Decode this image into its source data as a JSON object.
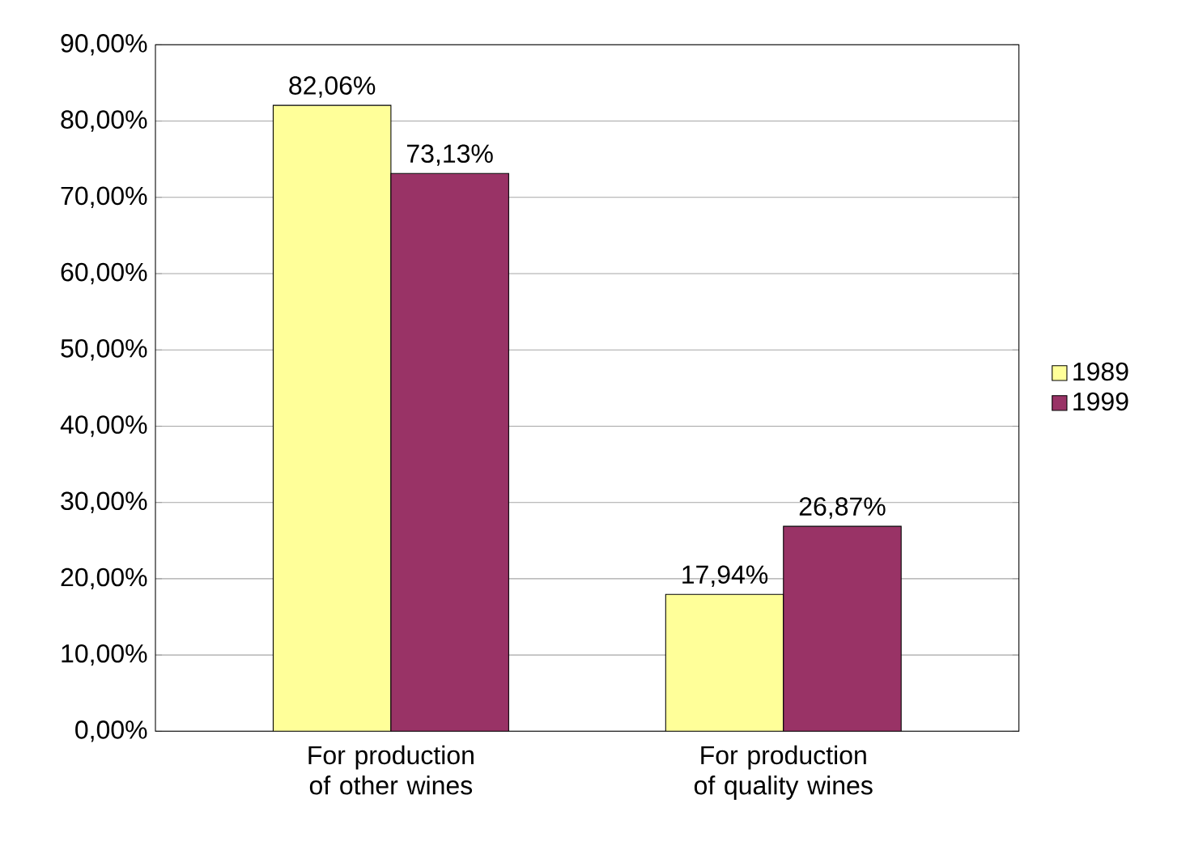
{
  "chart_data": {
    "type": "bar",
    "categories": [
      "For production of other wines",
      "For production of quality wines"
    ],
    "series": [
      {
        "name": "1989",
        "color": "#ffff99",
        "values": [
          82.06,
          17.94
        ],
        "value_labels": [
          "82,06%",
          "17,94%"
        ]
      },
      {
        "name": "1999",
        "color": "#993366",
        "values": [
          73.13,
          26.87
        ],
        "value_labels": [
          "73,13%",
          "26,87%"
        ]
      }
    ],
    "ylim": [
      0,
      90
    ],
    "yticks": [
      {
        "value": 0,
        "label": "0,00%"
      },
      {
        "value": 10,
        "label": "10,00%"
      },
      {
        "value": 20,
        "label": "20,00%"
      },
      {
        "value": 30,
        "label": "30,00%"
      },
      {
        "value": 40,
        "label": "40,00%"
      },
      {
        "value": 50,
        "label": "50,00%"
      },
      {
        "value": 60,
        "label": "60,00%"
      },
      {
        "value": 70,
        "label": "70,00%"
      },
      {
        "value": 80,
        "label": "80,00%"
      },
      {
        "value": 90,
        "label": "90,00%"
      }
    ],
    "grid": "y",
    "legend": "right"
  }
}
